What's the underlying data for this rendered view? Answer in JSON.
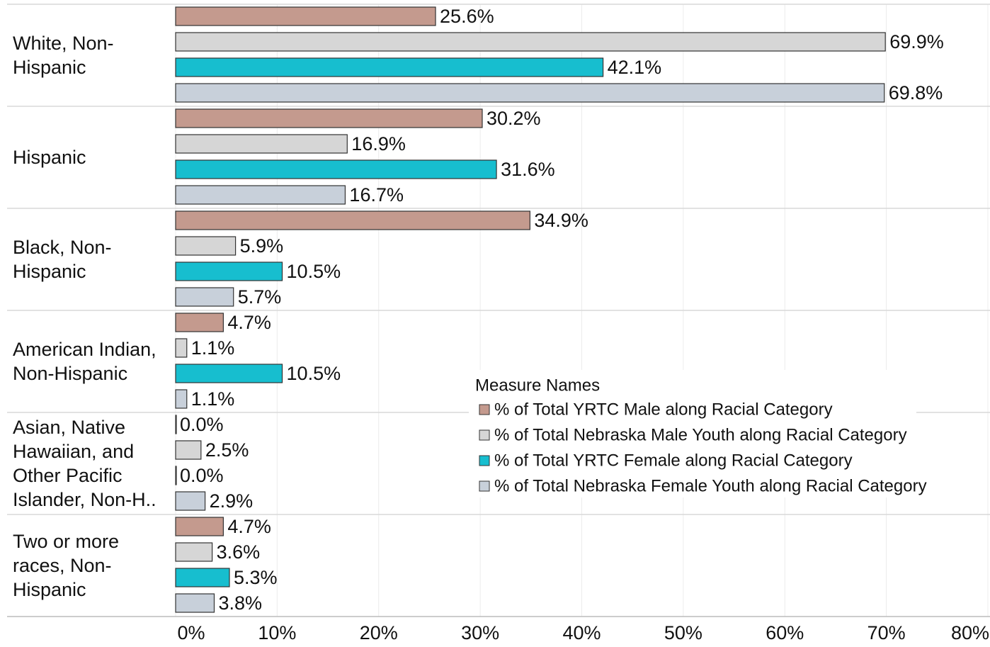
{
  "chart_data": {
    "type": "hbar",
    "categories": [
      "White, Non-Hispanic",
      "Hispanic",
      "Black, Non-Hispanic",
      "American Indian, Non-Hispanic",
      "Asian, Native Hawaiian, and Other Pacific Islander, Non-H..",
      "Two or more races, Non-Hispanic"
    ],
    "series": [
      {
        "name": "% of Total YRTC Male along Racial Category",
        "color": "#c49a8e",
        "values": [
          25.6,
          30.2,
          34.9,
          4.7,
          0.0,
          4.7
        ],
        "value_labels": [
          "25.6%",
          "30.2%",
          "34.9%",
          "4.7%",
          "0.0%",
          "4.7%"
        ]
      },
      {
        "name": "% of Total Nebraska Male Youth along Racial Category",
        "color": "#d6d6d6",
        "values": [
          69.9,
          16.9,
          5.9,
          1.1,
          2.5,
          3.6
        ],
        "value_labels": [
          "69.9%",
          "16.9%",
          "5.9%",
          "1.1%",
          "2.5%",
          "3.6%"
        ]
      },
      {
        "name": "% of Total YRTC Female along Racial Category",
        "color": "#17becf",
        "values": [
          42.1,
          31.6,
          10.5,
          10.5,
          0.0,
          5.3
        ],
        "value_labels": [
          "42.1%",
          "31.6%",
          "10.5%",
          "10.5%",
          "0.0%",
          "5.3%"
        ]
      },
      {
        "name": "% of Total Nebraska Female Youth along Racial Category",
        "color": "#c8d0da",
        "values": [
          69.8,
          16.7,
          5.7,
          1.1,
          2.9,
          3.8
        ],
        "value_labels": [
          "69.8%",
          "16.7%",
          "5.7%",
          "1.1%",
          "2.9%",
          "3.8%"
        ]
      }
    ],
    "legend_title": "Measure Names",
    "xlim": [
      0,
      80
    ],
    "xticks": [
      {
        "value": 0,
        "label": "0%"
      },
      {
        "value": 10,
        "label": "10%"
      },
      {
        "value": 20,
        "label": "20%"
      },
      {
        "value": 30,
        "label": "30%"
      },
      {
        "value": 40,
        "label": "40%"
      },
      {
        "value": 50,
        "label": "50%"
      },
      {
        "value": 60,
        "label": "60%"
      },
      {
        "value": 70,
        "label": "70%"
      },
      {
        "value": 80,
        "label": "80%"
      }
    ],
    "grid": true
  }
}
